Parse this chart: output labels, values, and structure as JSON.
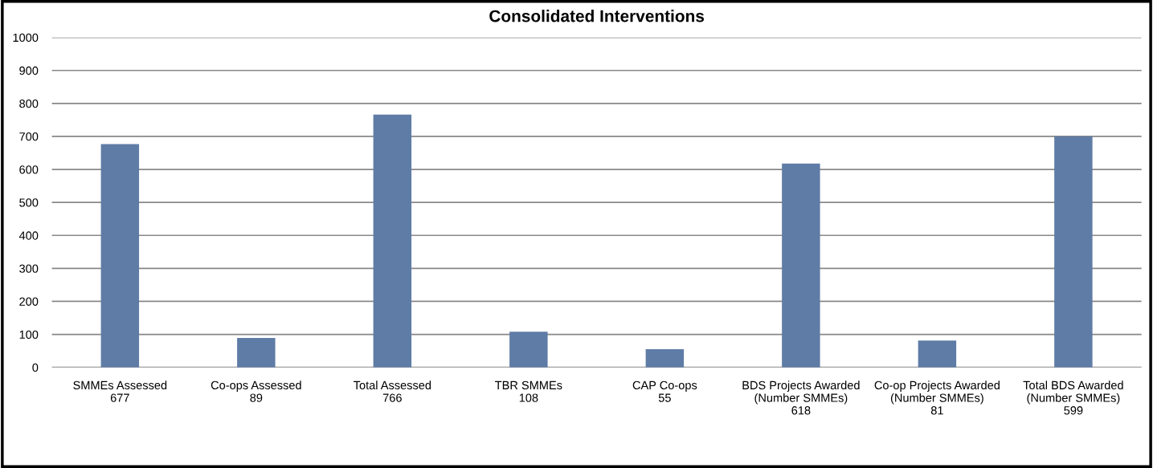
{
  "chart_data": {
    "type": "bar",
    "title": "Consolidated Interventions",
    "categories": [
      "SMMEs Assessed\n677",
      "Co-ops Assessed\n89",
      "Total Assessed\n766",
      "TBR SMMEs\n108",
      "CAP Co-ops\n55",
      "BDS Projects Awarded\n(Number SMMEs)\n618",
      "Co-op Projects Awarded\n(Number SMMEs)\n81",
      "Total BDS Awarded\n(Number SMMEs)\n599"
    ],
    "values": [
      677,
      89,
      766,
      108,
      55,
      618,
      81,
      700
    ],
    "color": "#5f7ca6",
    "ylim": [
      0,
      1000
    ],
    "yticks": [
      0,
      100,
      200,
      300,
      400,
      500,
      600,
      700,
      800,
      900,
      1000
    ],
    "grid": "y",
    "legend": false
  }
}
